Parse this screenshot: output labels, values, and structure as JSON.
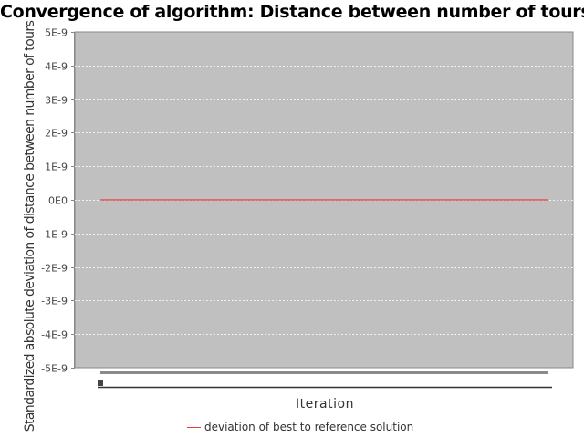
{
  "chart_data": {
    "type": "line",
    "title": "Convergence of algorithm: Distance between number of tours",
    "xlabel": "Iteration",
    "ylabel": "Standardized absolute deviation of distance between number of tours",
    "y_ticks": [
      "5E-9",
      "4E-9",
      "3E-9",
      "2E-9",
      "1E-9",
      "0E0",
      "-1E-9",
      "-2E-9",
      "-3E-9",
      "-4E-9",
      "-5E-9"
    ],
    "ylim": [
      -5e-09,
      5e-09
    ],
    "x_range": [
      0,
      1
    ],
    "grid": true,
    "legend_position": "bottom",
    "plot_background": "#c0c0c0",
    "series": [
      {
        "name": "deviation of best to reference solution",
        "color": "#e53a3a",
        "x": [
          0,
          1
        ],
        "y": [
          0,
          0
        ]
      }
    ]
  }
}
